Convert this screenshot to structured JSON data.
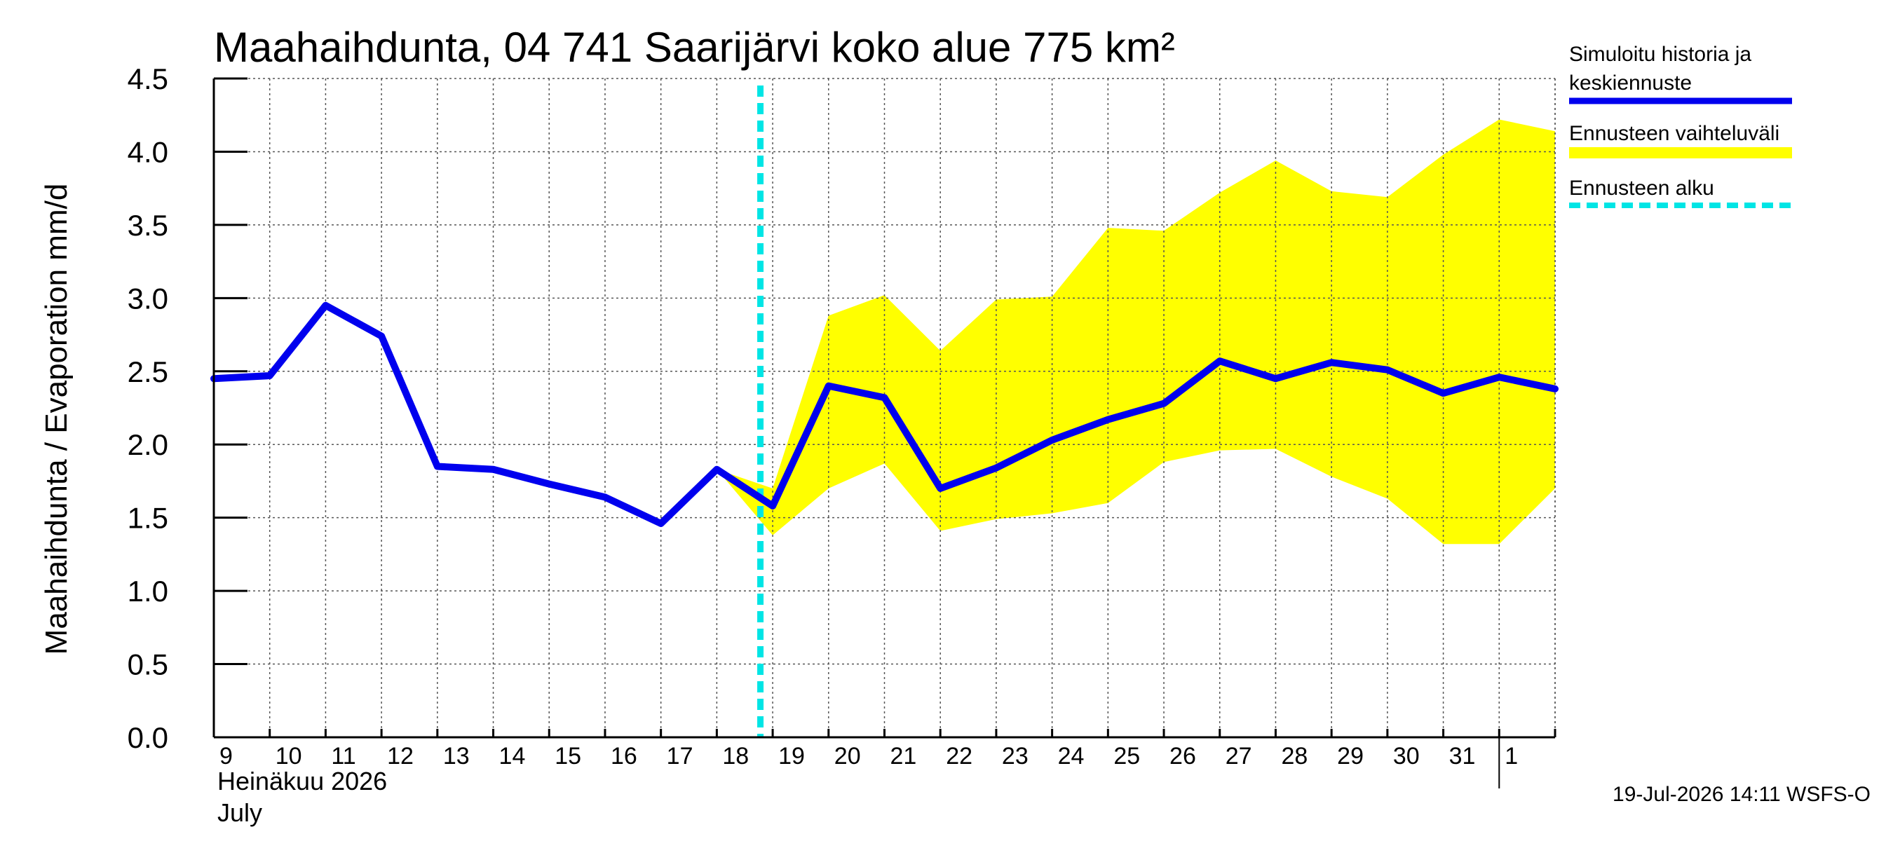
{
  "chart_data": {
    "type": "line",
    "title": "Maahaihdunta, 04 741 Saarijärvi koko alue 775 km²",
    "ylabel": "Maahaihdunta / Evaporation   mm/d",
    "ylim": [
      0,
      4.5
    ],
    "yticks": [
      "0.0",
      "0.5",
      "1.0",
      "1.5",
      "2.0",
      "2.5",
      "3.0",
      "3.5",
      "4.0",
      "4.5"
    ],
    "grid": true,
    "x_day_labels": [
      "9",
      "10",
      "11",
      "12",
      "13",
      "14",
      "15",
      "16",
      "17",
      "18",
      "19",
      "20",
      "21",
      "22",
      "23",
      "24",
      "25",
      "26",
      "27",
      "28",
      "29",
      "30",
      "31",
      "1"
    ],
    "month_label_fi": "Heinäkuu  2026",
    "month_label_en": "July",
    "forecast_start": "19",
    "series": [
      {
        "name": "Simuloitu historia ja keskiennuste",
        "color": "#0000ee",
        "values": [
          2.45,
          2.47,
          2.95,
          2.74,
          1.85,
          1.83,
          1.73,
          1.64,
          1.46,
          1.83,
          1.58,
          2.4,
          2.32,
          1.7,
          1.84,
          2.03,
          2.17,
          2.28,
          2.57,
          2.45,
          2.56,
          2.51,
          2.35,
          2.46,
          2.38
        ]
      }
    ],
    "band": {
      "name": "Ennusteen vaihteluväli",
      "color": "#ffff00",
      "start_index": 9,
      "upper": [
        1.83,
        1.7,
        2.88,
        3.02,
        2.64,
        2.99,
        3.01,
        3.48,
        3.46,
        3.72,
        3.94,
        3.73,
        3.69,
        3.98,
        4.22,
        4.14
      ],
      "lower": [
        1.83,
        1.38,
        1.7,
        1.87,
        1.41,
        1.49,
        1.53,
        1.6,
        1.88,
        1.96,
        1.97,
        1.78,
        1.63,
        1.32,
        1.32,
        1.7
      ]
    },
    "legend": {
      "placement": "right",
      "items": [
        {
          "label_lines": [
            "Simuloitu historia ja",
            "keskiennuste"
          ],
          "color": "#0000ee",
          "style": "solid"
        },
        {
          "label_lines": [
            "Ennusteen vaihteluväli"
          ],
          "color": "#ffff00",
          "style": "band"
        },
        {
          "label_lines": [
            "Ennusteen alku"
          ],
          "color": "#00e5e5",
          "style": "dashed"
        }
      ]
    },
    "footer": "19-Jul-2026 14:11 WSFS-O"
  }
}
